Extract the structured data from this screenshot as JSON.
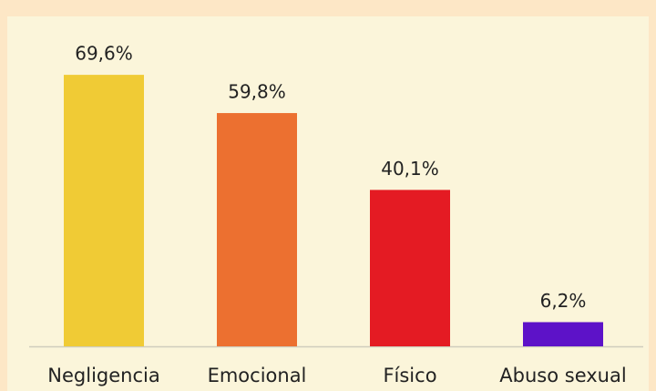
{
  "chart_data": {
    "type": "bar",
    "categories": [
      "Negligencia",
      "Emocional",
      "Físico",
      "Abuso sexual"
    ],
    "values": [
      69.6,
      59.8,
      40.1,
      6.2
    ],
    "value_labels": [
      "69,6%",
      "59,8%",
      "40,1%",
      "6,2%"
    ],
    "colors": [
      "#f0cb35",
      "#ec7030",
      "#e41b23",
      "#5d12c8"
    ]
  }
}
